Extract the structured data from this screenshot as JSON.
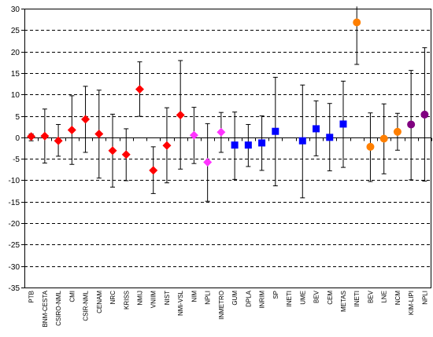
{
  "chart_data": {
    "type": "scatter",
    "title": "",
    "xlabel": "",
    "ylabel": "",
    "ylim": [
      -35,
      30
    ],
    "yticks": [
      -35,
      -30,
      -25,
      -20,
      -15,
      -10,
      -5,
      0,
      5,
      10,
      15,
      20,
      25,
      30
    ],
    "grid": "horizontal-dashed",
    "legend": "none",
    "categories": [
      "PTB",
      "BNM-CESTA",
      "CSIRO-NML",
      "CMI",
      "CSIR-NML",
      "CENAM",
      "NRC",
      "KRISS",
      "NMIJ",
      "VNIIM",
      "NIST",
      "NMi-VSL",
      "NIM",
      "NPLI",
      "INMETRO",
      "GUM",
      "DPLA",
      "INRIM",
      "SP",
      "INETI",
      "UME",
      "BEV",
      "CEM",
      "METAS",
      "INETI",
      "BEV",
      "LNE",
      "NCM",
      "KIM-LIPI",
      "NPLI"
    ],
    "points": [
      {
        "value": 0.2,
        "low": -0.8,
        "high": 0.8,
        "marker": "diamond",
        "color": "#ff0000"
      },
      {
        "value": 0.3,
        "low": -6.0,
        "high": 6.6,
        "marker": "diamond",
        "color": "#ff0000"
      },
      {
        "value": -0.8,
        "low": -4.4,
        "high": 3.0,
        "marker": "diamond",
        "color": "#ff0000"
      },
      {
        "value": 1.7,
        "low": -6.3,
        "high": 9.7,
        "marker": "diamond",
        "color": "#ff0000"
      },
      {
        "value": 4.2,
        "low": -3.5,
        "high": 11.9,
        "marker": "diamond",
        "color": "#ff0000"
      },
      {
        "value": 0.8,
        "low": -9.5,
        "high": 11.0,
        "marker": "diamond",
        "color": "#ff0000"
      },
      {
        "value": -3.1,
        "low": -11.6,
        "high": 5.4,
        "marker": "diamond",
        "color": "#ff0000"
      },
      {
        "value": -4.0,
        "low": -10.1,
        "high": 2.0,
        "marker": "diamond",
        "color": "#ff0000"
      },
      {
        "value": 11.2,
        "low": 4.9,
        "high": 17.6,
        "marker": "diamond",
        "color": "#ff0000"
      },
      {
        "value": -7.7,
        "low": -13.1,
        "high": -2.2,
        "marker": "diamond",
        "color": "#ff0000"
      },
      {
        "value": -1.9,
        "low": -10.6,
        "high": 6.9,
        "marker": "diamond",
        "color": "#ff0000"
      },
      {
        "value": 5.2,
        "low": -7.4,
        "high": 17.9,
        "marker": "diamond",
        "color": "#ff0000"
      },
      {
        "value": 0.5,
        "low": -6.1,
        "high": 7.0,
        "marker": "diamond",
        "color": "#ff33ff"
      },
      {
        "value": -5.8,
        "low": -14.9,
        "high": 3.2,
        "marker": "diamond",
        "color": "#ff33ff"
      },
      {
        "value": 1.2,
        "low": -3.5,
        "high": 5.8,
        "marker": "diamond",
        "color": "#ff33ff"
      },
      {
        "value": -1.8,
        "low": -9.8,
        "high": 5.9,
        "marker": "square",
        "color": "#0000ff"
      },
      {
        "value": -1.8,
        "low": -6.8,
        "high": 3.0,
        "marker": "square",
        "color": "#0000ff"
      },
      {
        "value": -1.3,
        "low": -7.7,
        "high": 5.0,
        "marker": "square",
        "color": "#0000ff"
      },
      {
        "value": 1.4,
        "low": -11.3,
        "high": 14.0,
        "marker": "square",
        "color": "#0000ff"
      },
      {
        "value": null,
        "low": null,
        "high": null,
        "marker": "square",
        "color": "#0000ff"
      },
      {
        "value": -0.8,
        "low": -14.1,
        "high": 12.2,
        "marker": "square",
        "color": "#0000ff"
      },
      {
        "value": 2.0,
        "low": -4.3,
        "high": 8.5,
        "marker": "square",
        "color": "#0000ff"
      },
      {
        "value": 0.0,
        "low": -7.8,
        "high": 7.9,
        "marker": "square",
        "color": "#0000ff"
      },
      {
        "value": 3.1,
        "low": -7.0,
        "high": 13.1,
        "marker": "square",
        "color": "#0000ff"
      },
      {
        "value": 26.8,
        "low": 17.0,
        "high": 30.5,
        "marker": "circle",
        "color": "#ff7f00"
      },
      {
        "value": -2.2,
        "low": -10.3,
        "high": 5.7,
        "marker": "circle",
        "color": "#ff7f00"
      },
      {
        "value": -0.3,
        "low": -8.5,
        "high": 7.8,
        "marker": "circle",
        "color": "#ff7f00"
      },
      {
        "value": 1.3,
        "low": -3.0,
        "high": 5.6,
        "marker": "circle",
        "color": "#ff7f00"
      },
      {
        "value": 3.0,
        "low": -9.9,
        "high": 15.6,
        "marker": "circle",
        "color": "#800080"
      },
      {
        "value": 5.3,
        "low": -10.2,
        "high": 20.9,
        "marker": "circle",
        "color": "#800080"
      }
    ]
  }
}
